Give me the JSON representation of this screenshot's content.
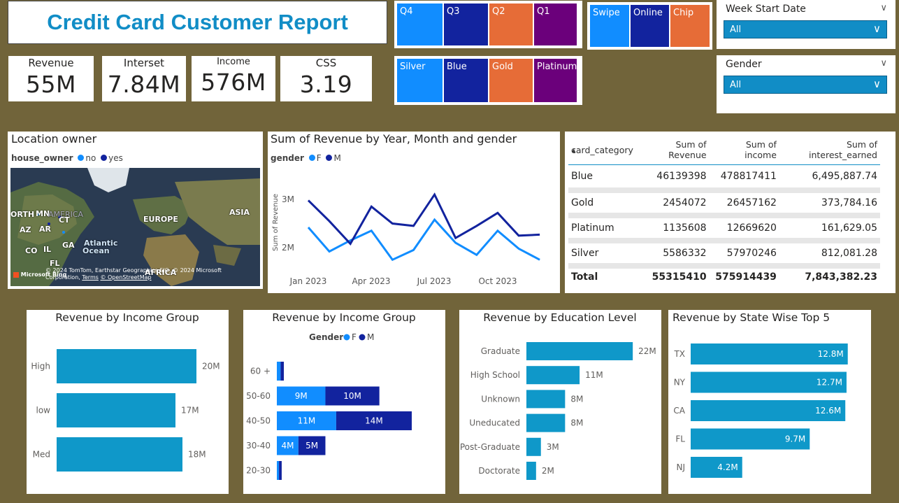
{
  "title": "Credit Card Customer Report",
  "kpis": [
    {
      "label": "Revenue",
      "value": "55M"
    },
    {
      "label": "Interset",
      "value": "7.84M"
    },
    {
      "label": "Income",
      "value": "576M"
    },
    {
      "label": "CSS",
      "value": "3.19"
    }
  ],
  "quarter_slicer": [
    "Q4",
    "Q3",
    "Q2",
    "Q1"
  ],
  "card_slicer": [
    "Silver",
    "Blue",
    "Gold",
    "Platinum"
  ],
  "use_type_slicer": [
    "Swipe",
    "Online",
    "Chip"
  ],
  "tile_colors": [
    "#118dff",
    "#12239e",
    "#e66c37",
    "#6b007b"
  ],
  "week_slicer": {
    "title": "Week Start Date",
    "value": "All"
  },
  "gender_slicer": {
    "title": "Gender",
    "value": "All"
  },
  "map": {
    "title": "Location owner",
    "legend_title": "house_owner",
    "legend_items": [
      "no",
      "yes"
    ],
    "labels": [
      "ORTH",
      "MN",
      "AMERICA",
      "CT",
      "AZ",
      "AR",
      "CO",
      "IL",
      "GA",
      "FL",
      "EUROPE",
      "ASIA",
      "Atlantic",
      "Ocean",
      "AFRICA"
    ],
    "attribution": "© 2024 TomTom, Earthstar Geographics SIO, © 2024 Microsoft Corporation,",
    "terms": "Terms",
    "osm": "© OpenStreetMap",
    "bing": "Microsoft Bing"
  },
  "colors": {
    "primary": "#118dc6",
    "light_blue": "#118dff",
    "dark_blue": "#12239e",
    "orange": "#e66c37",
    "purple": "#6b007b",
    "bg": "#71643a",
    "bar": "#0f98c9"
  },
  "line_chart": {
    "title": "Sum of Revenue by Year, Month and gender",
    "legend_title": "gender",
    "legend_items": [
      "F",
      "M"
    ],
    "ylabel": "Sum of Revenue",
    "yticks": [
      "3M",
      "2M"
    ],
    "xticks": [
      "Jan 2023",
      "Apr 2023",
      "Jul 2023",
      "Oct 2023"
    ]
  },
  "table": {
    "headers": [
      "card_category",
      "Sum of Revenue",
      "Sum of income",
      "Sum of interest_earned"
    ],
    "rows": [
      [
        "Blue",
        "46139398",
        "478817411",
        "6,495,887.74"
      ],
      [
        "Gold",
        "2454072",
        "26457162",
        "373,784.16"
      ],
      [
        "Platinum",
        "1135608",
        "12669620",
        "161,629.05"
      ],
      [
        "Silver",
        "5586332",
        "57970246",
        "812,081.28"
      ]
    ],
    "total": [
      "Total",
      "55315410",
      "575914439",
      "7,843,382.23"
    ]
  },
  "chart_data": [
    {
      "type": "line",
      "title": "Sum of Revenue by Year, Month and gender",
      "x": [
        "Jan 2023",
        "Feb 2023",
        "Mar 2023",
        "Apr 2023",
        "May 2023",
        "Jun 2023",
        "Jul 2023",
        "Aug 2023",
        "Sep 2023",
        "Oct 2023",
        "Nov 2023",
        "Dec 2023"
      ],
      "series": [
        {
          "name": "F",
          "values": [
            2.42,
            1.92,
            2.15,
            2.35,
            1.75,
            1.95,
            2.58,
            2.1,
            1.85,
            2.35,
            1.98,
            1.75
          ]
        },
        {
          "name": "M",
          "values": [
            2.98,
            2.55,
            2.08,
            2.85,
            2.5,
            2.45,
            3.1,
            2.2,
            2.45,
            2.72,
            2.25,
            2.27
          ]
        }
      ],
      "ylabel": "Sum of Revenue",
      "yunit": "M",
      "ylim": [
        1.4,
        3.5
      ]
    },
    {
      "type": "bar",
      "title": "Revenue by Income Group",
      "categories": [
        "High",
        "low",
        "Med"
      ],
      "values": [
        20,
        17,
        18
      ],
      "labels": [
        "20M",
        "17M",
        "18M"
      ],
      "xlim": [
        0,
        24
      ]
    },
    {
      "type": "bar",
      "title": "Revenue by Income Group",
      "legend_title": "Gender",
      "categories": [
        "60 +",
        "50-60",
        "40-50",
        "30-40",
        "20-30"
      ],
      "series": [
        {
          "name": "F",
          "values": [
            0.7,
            9,
            11,
            4,
            0.4
          ],
          "labels": [
            "",
            "9M",
            "11M",
            "4M",
            ""
          ]
        },
        {
          "name": "M",
          "values": [
            0.6,
            10,
            14,
            5,
            0.5
          ],
          "labels": [
            "",
            "10M",
            "14M",
            "5M",
            ""
          ]
        }
      ],
      "xlim": [
        0,
        28
      ]
    },
    {
      "type": "bar",
      "title": "Revenue by Education Level",
      "categories": [
        "Graduate",
        "High School",
        "Unknown",
        "Uneducated",
        "Post-Graduate",
        "Doctorate"
      ],
      "values": [
        22,
        11,
        8,
        8,
        3,
        2
      ],
      "labels": [
        "22M",
        "11M",
        "8M",
        "8M",
        "3M",
        "2M"
      ],
      "xlim": [
        0,
        24
      ]
    },
    {
      "type": "bar",
      "title": "Revenue by State Wise Top 5",
      "categories": [
        "TX",
        "NY",
        "CA",
        "FL",
        "NJ"
      ],
      "values": [
        12.8,
        12.7,
        12.6,
        9.7,
        4.2
      ],
      "labels": [
        "12.8M",
        "12.7M",
        "12.6M",
        "9.7M",
        "4.2M"
      ],
      "xlim": [
        0,
        13.5
      ]
    }
  ]
}
